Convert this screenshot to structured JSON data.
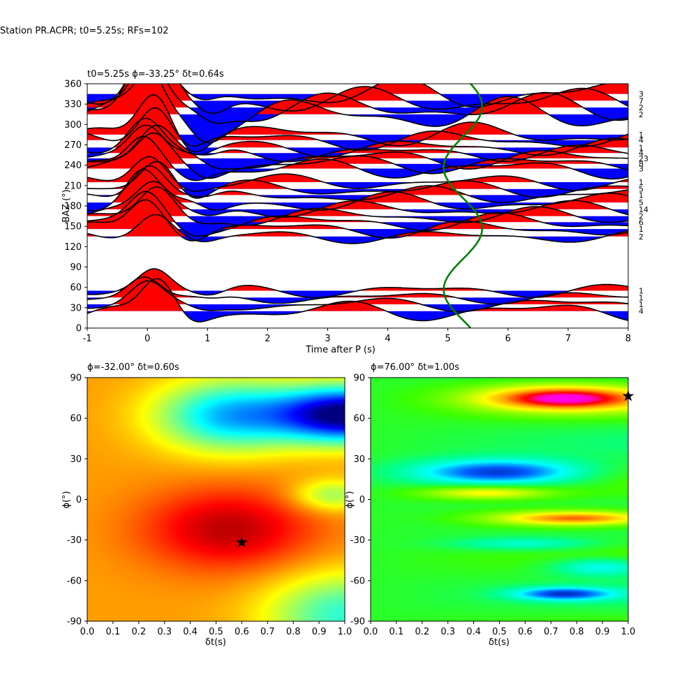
{
  "suptitle": "Station PR.ACPR; t0=5.25s; RFs=102",
  "colors": {
    "positive": "#ff0000",
    "negative": "#0000ff",
    "trace": "#000000",
    "curve": "#008000"
  },
  "chart_data": [
    {
      "type": "line",
      "name": "radial-receiver-functions",
      "title": "t0=5.25s ϕ=-33.25° δt=0.64s",
      "xlabel": "Time after P (s)",
      "ylabel": "BAZ (°)",
      "xlim": [
        -1,
        8
      ],
      "ylim": [
        0,
        360
      ],
      "xticks": [
        -1,
        0,
        1,
        2,
        3,
        4,
        5,
        6,
        7,
        8
      ],
      "yticks": [
        0,
        30,
        60,
        90,
        120,
        150,
        180,
        210,
        240,
        270,
        300,
        330,
        360
      ],
      "traces": [
        {
          "baz": 345,
          "count": "3",
          "amp": 70
        },
        {
          "baz": 335,
          "count": "7",
          "amp": 60
        },
        {
          "baz": 325,
          "count": "2",
          "amp": 65
        },
        {
          "baz": 315,
          "count": "2",
          "amp": 75
        },
        {
          "baz": 285,
          "count": "1",
          "amp": 55
        },
        {
          "baz": 277,
          "count": "4",
          "amp": 45
        },
        {
          "baz": 266,
          "count": "1",
          "amp": 40
        },
        {
          "baz": 258,
          "count": "4",
          "amp": 38
        },
        {
          "baz": 250,
          "count": "23",
          "amp": 45
        },
        {
          "baz": 242,
          "count": "8",
          "amp": 42
        },
        {
          "baz": 235,
          "count": "3",
          "amp": 44
        },
        {
          "baz": 215,
          "count": "1",
          "amp": 35
        },
        {
          "baz": 205,
          "count": "5",
          "amp": 38
        },
        {
          "baz": 196,
          "count": "1",
          "amp": 40
        },
        {
          "baz": 185,
          "count": "5",
          "amp": 45
        },
        {
          "baz": 175,
          "count": "14",
          "amp": 38
        },
        {
          "baz": 165,
          "count": "2",
          "amp": 40
        },
        {
          "baz": 156,
          "count": "6",
          "amp": 42
        },
        {
          "baz": 146,
          "count": "1",
          "amp": 40
        },
        {
          "baz": 135,
          "count": "2",
          "amp": 30
        },
        {
          "baz": 55,
          "count": "1",
          "amp": 30
        },
        {
          "baz": 45,
          "count": "1",
          "amp": 28
        },
        {
          "baz": 35,
          "count": "1",
          "amp": 32
        },
        {
          "baz": 25,
          "count": "4",
          "amp": 45
        }
      ],
      "cosine_curve": {
        "center": 5.25,
        "amplitude": 0.32,
        "phase_deg": -33.25
      }
    },
    {
      "type": "heatmap",
      "name": "grid-search-energy",
      "title": "ϕ=-32.00° δt=0.60s",
      "xlabel": "δt(s)",
      "ylabel": "ϕ(°)",
      "xlim": [
        0,
        1
      ],
      "ylim": [
        -90,
        90
      ],
      "xticks": [
        0.0,
        0.1,
        0.2,
        0.3,
        0.4,
        0.5,
        0.6,
        0.7,
        0.8,
        0.9,
        1.0
      ],
      "yticks": [
        -90,
        -60,
        -30,
        0,
        30,
        60,
        90
      ],
      "colormap": "jet",
      "best": {
        "dt": 0.6,
        "phi": -32
      }
    },
    {
      "type": "heatmap",
      "name": "grid-search-misfit",
      "title": "ϕ=76.00° δt=1.00s",
      "xlabel": "δt(s)",
      "ylabel": "ϕ(°)",
      "xlim": [
        0,
        1
      ],
      "ylim": [
        -90,
        90
      ],
      "xticks": [
        0.0,
        0.1,
        0.2,
        0.3,
        0.4,
        0.5,
        0.6,
        0.7,
        0.8,
        0.9,
        1.0
      ],
      "yticks": [
        -90,
        -60,
        -30,
        0,
        30,
        60,
        90
      ],
      "colormap": "gist_ncar",
      "best": {
        "dt": 1.0,
        "phi": 76
      }
    }
  ]
}
